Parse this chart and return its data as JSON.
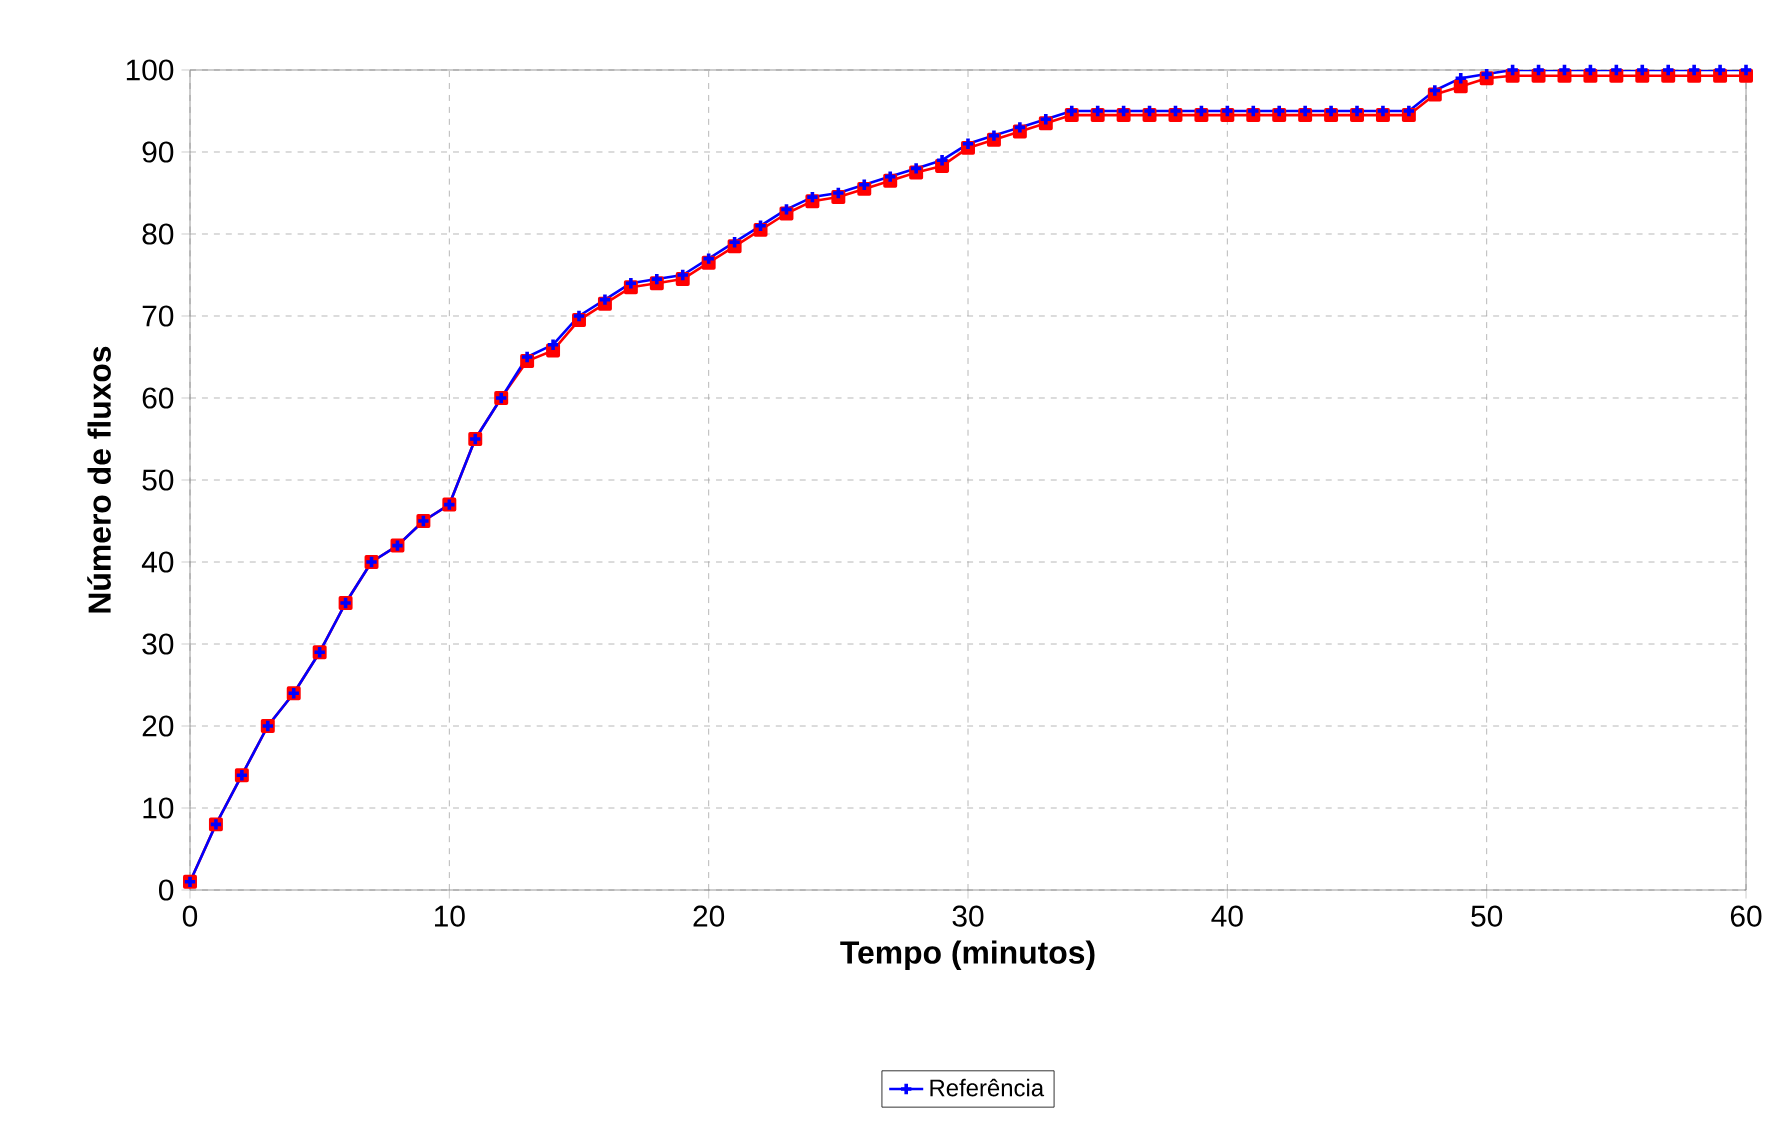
{
  "chart_data": {
    "type": "line",
    "xlabel": "Tempo (minutos)",
    "ylabel": "Número de fluxos",
    "x": [
      0,
      1,
      2,
      3,
      4,
      5,
      6,
      7,
      8,
      9,
      10,
      11,
      12,
      13,
      14,
      15,
      16,
      17,
      18,
      19,
      20,
      21,
      22,
      23,
      24,
      25,
      26,
      27,
      28,
      29,
      30,
      31,
      32,
      33,
      34,
      35,
      36,
      37,
      38,
      39,
      40,
      41,
      42,
      43,
      44,
      45,
      46,
      47,
      48,
      49,
      50,
      51,
      52,
      53,
      54,
      55,
      56,
      57,
      58,
      59,
      60
    ],
    "series": [
      {
        "name": "Referência",
        "color": "#0000ff",
        "marker": "cross",
        "values": [
          1,
          8,
          14,
          20,
          24,
          29,
          35,
          40,
          42,
          45,
          47,
          55,
          60,
          65,
          66.5,
          70,
          72,
          74,
          74.5,
          75,
          77,
          79,
          81,
          83,
          84.5,
          85,
          86,
          87,
          88,
          89,
          91,
          92,
          93,
          94,
          95,
          95,
          95,
          95,
          95,
          95,
          95,
          95,
          95,
          95,
          95,
          95,
          95,
          95,
          97.5,
          99,
          99.5,
          100,
          100,
          100,
          100,
          100,
          100,
          100,
          100,
          100,
          100
        ]
      },
      {
        "color": "#ff0000",
        "marker": "square",
        "values": [
          1,
          8,
          14,
          20,
          24,
          29,
          35,
          40,
          42,
          45,
          47,
          55,
          60,
          64.5,
          65.8,
          69.5,
          71.5,
          73.5,
          74,
          74.5,
          76.5,
          78.5,
          80.5,
          82.5,
          84,
          84.5,
          85.5,
          86.5,
          87.5,
          88.3,
          90.5,
          91.5,
          92.5,
          93.5,
          94.5,
          94.5,
          94.5,
          94.5,
          94.5,
          94.5,
          94.5,
          94.5,
          94.5,
          94.5,
          94.5,
          94.5,
          94.5,
          94.5,
          97,
          98,
          99,
          99.3,
          99.3,
          99.3,
          99.3,
          99.3,
          99.3,
          99.3,
          99.3,
          99.3,
          99.3
        ]
      }
    ],
    "xlim": [
      0,
      60
    ],
    "ylim": [
      0,
      100
    ],
    "xticks": [
      0,
      10,
      20,
      30,
      40,
      50,
      60
    ],
    "yticks": [
      0,
      10,
      20,
      30,
      40,
      50,
      60,
      70,
      80,
      90,
      100
    ],
    "grid": true,
    "legend": "bottom",
    "line_style": "solid"
  }
}
